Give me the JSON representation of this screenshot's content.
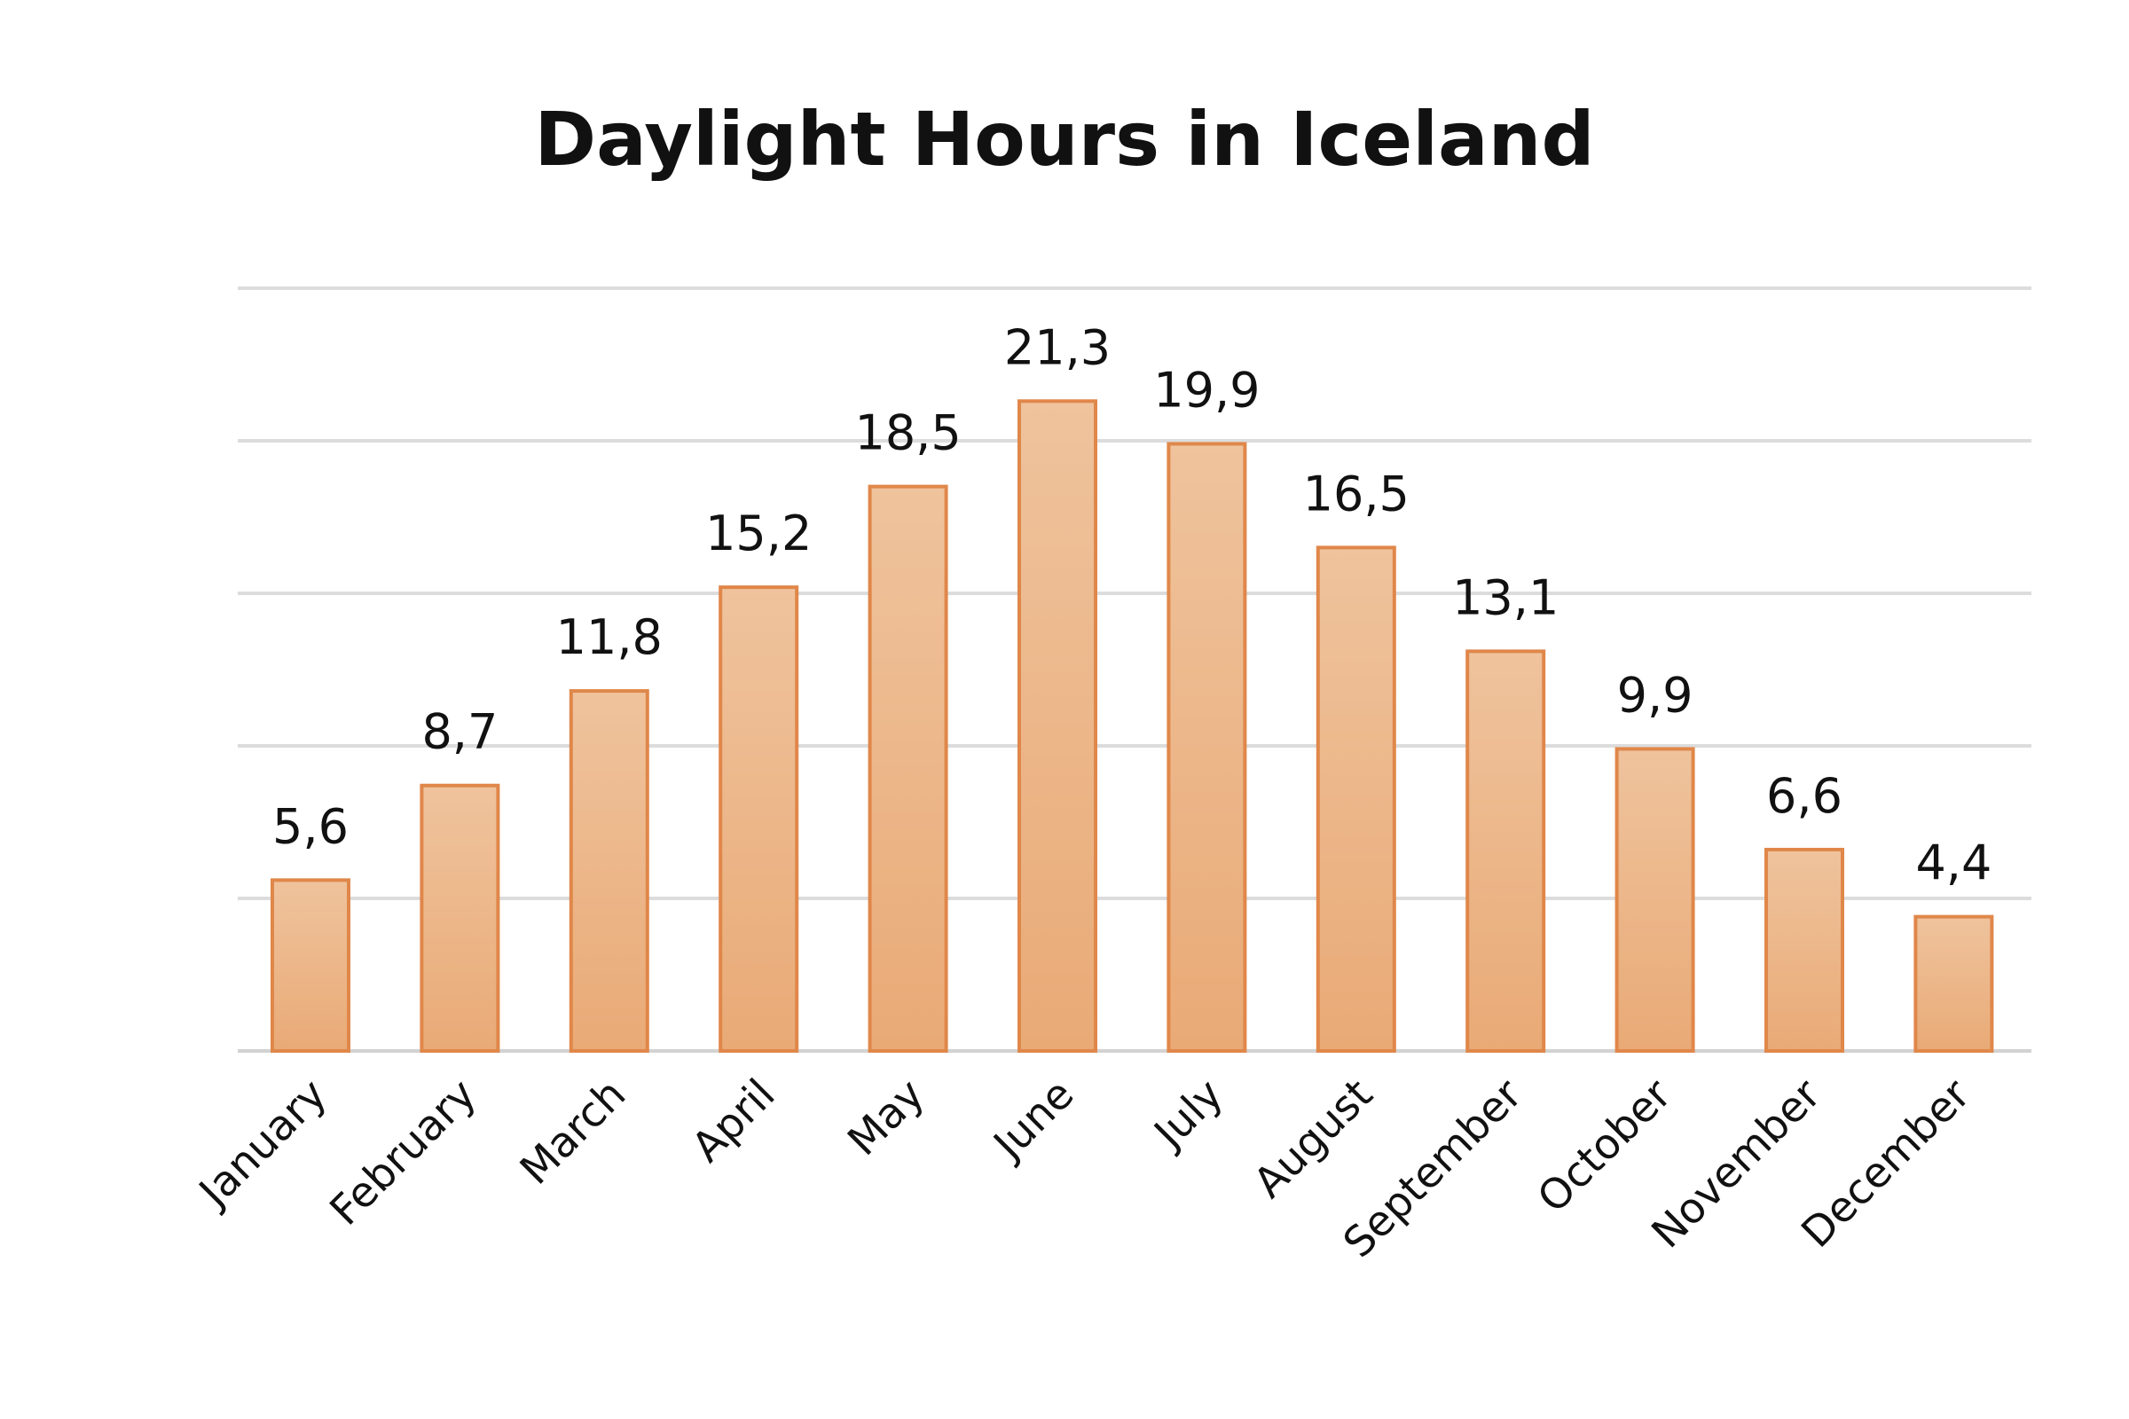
{
  "chart_data": {
    "type": "bar",
    "title": "Daylight Hours in Iceland",
    "xlabel": "",
    "ylabel": "",
    "categories": [
      "January",
      "February",
      "March",
      "April",
      "May",
      "June",
      "July",
      "August",
      "September",
      "October",
      "November",
      "December"
    ],
    "values": [
      5.6,
      8.7,
      11.8,
      15.2,
      18.5,
      21.3,
      19.9,
      16.5,
      13.1,
      9.9,
      6.6,
      4.4
    ],
    "data_labels": [
      "5,6",
      "8,7",
      "11,8",
      "15,2",
      "18,5",
      "21,3",
      "19,9",
      "16,5",
      "13,1",
      "9,9",
      "6,6",
      "4,4"
    ],
    "ylim": [
      0,
      25
    ],
    "y_gridlines": [
      5,
      10,
      15,
      20,
      25
    ],
    "grid": true,
    "legend": "none",
    "x_tick_rotation": -45,
    "colors": {
      "bar_fill_top": "#efc39d",
      "bar_fill_bottom": "#e9aa76",
      "bar_stroke": "#e0874a",
      "gridline": "#dcdcdc",
      "text": "#111111"
    }
  }
}
